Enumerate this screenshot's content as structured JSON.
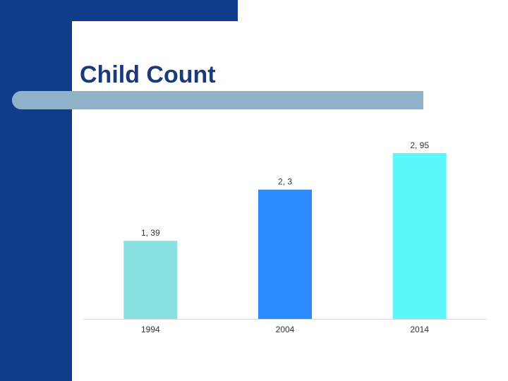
{
  "slide": {
    "title": "Child Count",
    "colors": {
      "navy": "#0f3d8c",
      "title": "#1a3a7a",
      "rule": "#8fb2c9",
      "axis": "#d9d9d9"
    }
  },
  "chart_data": {
    "type": "bar",
    "title": "",
    "xlabel": "",
    "ylabel": "",
    "categories": [
      "1994",
      "2004",
      "2014"
    ],
    "values": [
      1.39,
      2.3,
      2.95
    ],
    "data_labels": [
      "1, 39",
      "2, 3",
      "2, 95"
    ],
    "bar_colors": [
      "#88e0e0",
      "#2b8cff",
      "#5cf7fb"
    ],
    "ylim": [
      0,
      3.1
    ],
    "grid": false,
    "legend": "none"
  }
}
